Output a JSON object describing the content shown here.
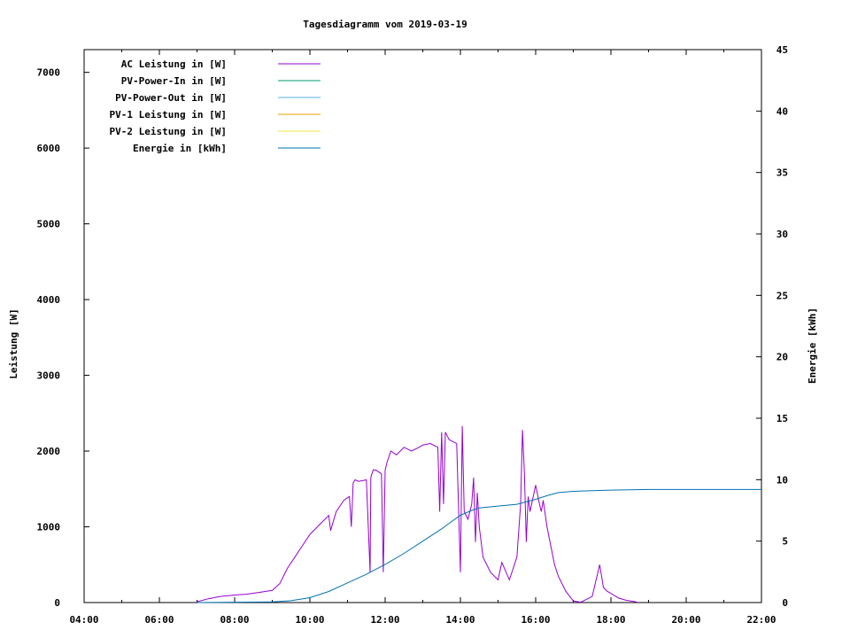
{
  "chart_data": {
    "type": "line",
    "title": "Tagesdiagramm vom 2019-03-19",
    "ylabel": "Leistung [W]",
    "y2label": "Energie [kWh]",
    "x_ticks": [
      "04:00",
      "06:00",
      "08:00",
      "10:00",
      "12:00",
      "14:00",
      "16:00",
      "18:00",
      "20:00",
      "22:00"
    ],
    "xlim_hours": [
      4,
      22
    ],
    "ylim": [
      0,
      7300
    ],
    "y_ticks": [
      0,
      1000,
      2000,
      3000,
      4000,
      5000,
      6000,
      7000
    ],
    "y2lim": [
      0,
      45
    ],
    "y2_ticks": [
      0,
      5,
      10,
      15,
      20,
      25,
      30,
      35,
      40,
      45
    ],
    "grid": false,
    "legend_position": "top-left",
    "series": [
      {
        "name": "AC Leistung in [W]",
        "axis": "left",
        "color": "#9400d3",
        "x": [
          7.0,
          7.3,
          7.6,
          8.0,
          8.3,
          8.6,
          9.0,
          9.2,
          9.4,
          9.6,
          9.8,
          10.0,
          10.2,
          10.4,
          10.5,
          10.55,
          10.7,
          10.9,
          11.05,
          11.1,
          11.15,
          11.2,
          11.3,
          11.5,
          11.6,
          11.62,
          11.68,
          11.75,
          11.9,
          11.95,
          12.0,
          12.05,
          12.15,
          12.3,
          12.5,
          12.7,
          12.9,
          13.0,
          13.2,
          13.4,
          13.45,
          13.5,
          13.55,
          13.6,
          13.7,
          13.9,
          14.0,
          14.05,
          14.1,
          14.2,
          14.3,
          14.35,
          14.4,
          14.45,
          14.5,
          14.6,
          14.8,
          15.0,
          15.1,
          15.3,
          15.5,
          15.6,
          15.65,
          15.7,
          15.75,
          15.8,
          15.85,
          16.0,
          16.1,
          16.15,
          16.2,
          16.3,
          16.5,
          16.6,
          16.8,
          17.0,
          17.2,
          17.5,
          17.7,
          17.8,
          17.9,
          18.0,
          18.2,
          18.4,
          18.6,
          18.7
        ],
        "y": [
          10,
          50,
          80,
          100,
          110,
          130,
          160,
          250,
          450,
          600,
          750,
          900,
          1000,
          1100,
          1150,
          950,
          1200,
          1350,
          1400,
          1000,
          1580,
          1620,
          1600,
          1620,
          400,
          1650,
          1750,
          1750,
          1700,
          400,
          1750,
          1850,
          2000,
          1950,
          2050,
          2000,
          2050,
          2080,
          2100,
          2050,
          1200,
          2250,
          1300,
          2250,
          2150,
          2100,
          400,
          2330,
          1200,
          1100,
          1300,
          1650,
          800,
          1450,
          1000,
          600,
          400,
          300,
          530,
          300,
          600,
          1300,
          2280,
          1700,
          800,
          1400,
          1200,
          1550,
          1300,
          1200,
          1350,
          1000,
          500,
          350,
          150,
          20,
          5,
          80,
          500,
          200,
          150,
          120,
          60,
          30,
          15,
          5
        ]
      },
      {
        "name": "PV-Power-In in [W]",
        "axis": "left",
        "color": "#009e73",
        "x": [],
        "y": []
      },
      {
        "name": "PV-Power-Out in [W]",
        "axis": "left",
        "color": "#56b4e9",
        "x": [],
        "y": []
      },
      {
        "name": "PV-1 Leistung in [W]",
        "axis": "left",
        "color": "#e69f00",
        "x": [],
        "y": []
      },
      {
        "name": "PV-2 Leistung in [W]",
        "axis": "left",
        "color": "#f0e442",
        "x": [],
        "y": []
      },
      {
        "name": "Energie in [kWh]",
        "axis": "right",
        "color": "#0072b2",
        "x": [
          7.0,
          9.0,
          9.5,
          10.0,
          10.5,
          11.0,
          11.5,
          12.0,
          12.5,
          13.0,
          13.5,
          14.0,
          14.3,
          14.5,
          15.0,
          15.5,
          16.0,
          16.3,
          16.6,
          17.0,
          17.5,
          18.0,
          18.5,
          19.0,
          22.0
        ],
        "y": [
          0,
          0.05,
          0.15,
          0.4,
          0.9,
          1.6,
          2.3,
          3.1,
          4.0,
          5.0,
          6.0,
          7.1,
          7.5,
          7.7,
          7.85,
          8.0,
          8.4,
          8.7,
          8.95,
          9.05,
          9.1,
          9.15,
          9.18,
          9.2,
          9.2
        ]
      }
    ]
  }
}
